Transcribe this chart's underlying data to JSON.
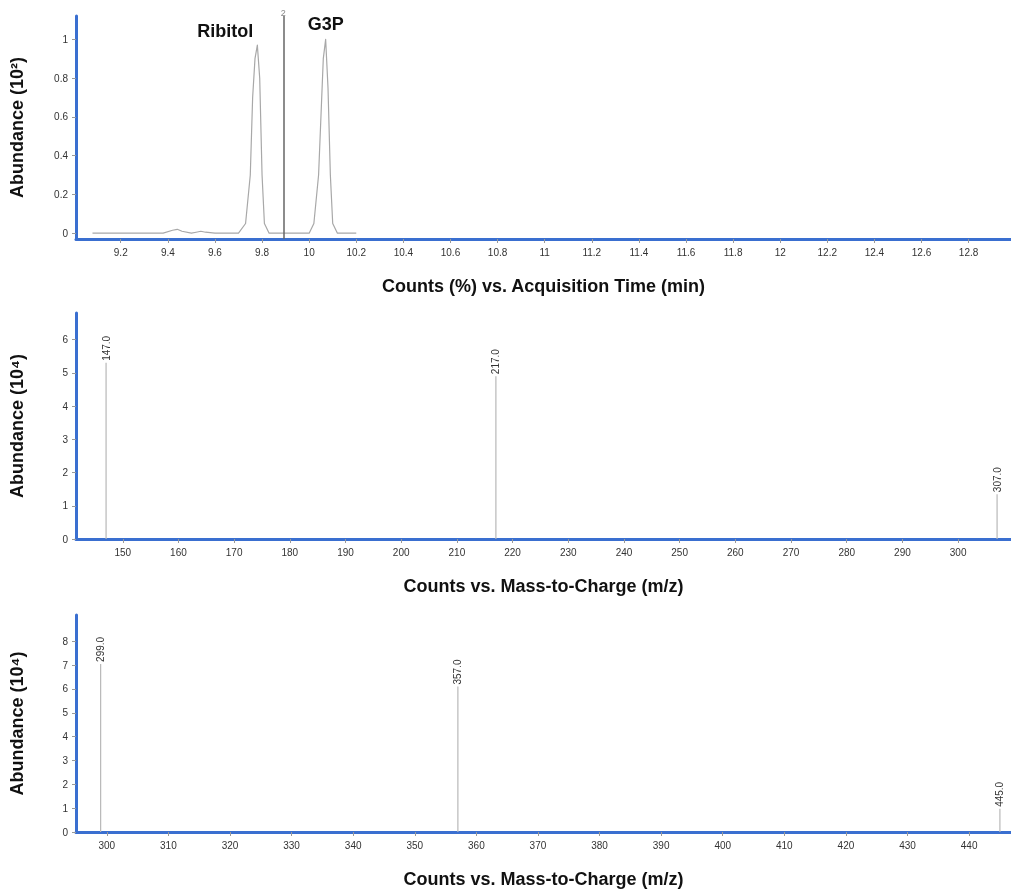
{
  "chart_data": [
    {
      "type": "line",
      "xlabel": "Counts (%) vs. Acquisition Time (min)",
      "ylabel": "Abundance (10²)",
      "color": "#a8a8a8",
      "x": [
        9.08,
        9.38,
        9.42,
        9.44,
        9.46,
        9.5,
        9.52,
        9.54,
        9.56,
        9.6,
        9.7,
        9.73,
        9.75,
        9.76,
        9.77,
        9.78,
        9.79,
        9.8,
        9.81,
        9.83,
        10.0,
        10.02,
        10.04,
        10.05,
        10.06,
        10.07,
        10.08,
        10.09,
        10.1,
        10.12,
        10.2
      ],
      "values": [
        0,
        0,
        0.015,
        0.02,
        0.01,
        0,
        0.005,
        0.01,
        0.005,
        0,
        0,
        0.05,
        0.3,
        0.7,
        0.9,
        0.97,
        0.8,
        0.3,
        0.05,
        0,
        0,
        0.05,
        0.3,
        0.6,
        0.9,
        1.0,
        0.75,
        0.3,
        0.05,
        0,
        0
      ],
      "xlim": [
        9.01,
        12.98
      ],
      "xticks": [
        9.2,
        9.4,
        9.6,
        9.8,
        10,
        10.2,
        10.4,
        10.6,
        10.8,
        11,
        11.2,
        11.4,
        11.6,
        11.8,
        12,
        12.2,
        12.4,
        12.6,
        12.8
      ],
      "ylim": [
        -0.03,
        1.12
      ],
      "yticks": [
        0,
        0.2,
        0.4,
        0.6,
        0.8,
        1
      ],
      "ref_lines": [
        {
          "axis": "x",
          "value": 9.89,
          "color": "#666666"
        }
      ],
      "annotations": [
        {
          "text": "Ribitol",
          "x": 9.78,
          "y": 0.97
        },
        {
          "text": "G3P",
          "x": 10.07,
          "y": 1.0
        },
        {
          "text": "2",
          "x": 9.89,
          "y": 1.1
        }
      ]
    },
    {
      "type": "bar",
      "xlabel": "Counts vs. Mass-to-Charge (m/z)",
      "ylabel": "Abundance (10⁴)",
      "color": "#b8b8b8",
      "x": [
        147,
        217,
        307
      ],
      "values": [
        5.3,
        4.9,
        1.35
      ],
      "annotations": [
        {
          "text": "147.0",
          "x": 147,
          "y": 5.3
        },
        {
          "text": "217.0",
          "x": 217,
          "y": 4.9
        },
        {
          "text": "307.0",
          "x": 307,
          "y": 1.35
        }
      ],
      "xlim": [
        141.6,
        309.5
      ],
      "xticks": [
        150,
        160,
        170,
        180,
        190,
        200,
        210,
        220,
        230,
        240,
        250,
        260,
        270,
        280,
        290,
        300
      ],
      "ylim": [
        0,
        6.8
      ],
      "yticks": [
        0,
        1,
        2,
        3,
        4,
        5,
        6
      ]
    },
    {
      "type": "bar",
      "xlabel": "Counts vs. Mass-to-Charge (m/z)",
      "ylabel": "Abundance (10⁴)",
      "color": "#b8b8b8",
      "x": [
        299,
        357,
        445
      ],
      "values": [
        7.05,
        6.1,
        0.97
      ],
      "annotations": [
        {
          "text": "299.0",
          "x": 299,
          "y": 7.05
        },
        {
          "text": "357.0",
          "x": 357,
          "y": 6.1
        },
        {
          "text": "445.0",
          "x": 445,
          "y": 0.97
        }
      ],
      "xlim": [
        295,
        446.8
      ],
      "xticks": [
        300,
        310,
        320,
        330,
        340,
        350,
        360,
        370,
        380,
        390,
        400,
        410,
        420,
        430,
        440
      ],
      "ylim": [
        0,
        9.1
      ],
      "yticks": [
        0,
        1,
        2,
        3,
        4,
        5,
        6,
        7,
        8
      ]
    }
  ]
}
